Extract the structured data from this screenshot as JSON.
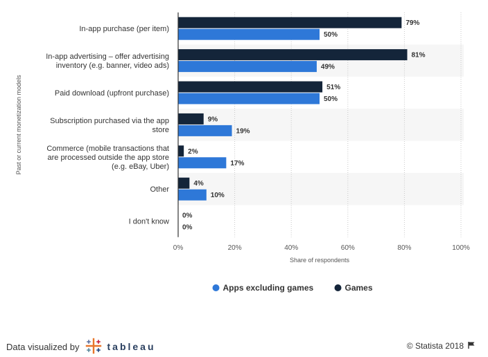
{
  "chart_data": {
    "type": "bar",
    "orientation": "horizontal",
    "categories": [
      [
        "In-app purchase (per item)"
      ],
      [
        "In-app advertising – offer advertising",
        "inventory (e.g. banner, video ads)"
      ],
      [
        "Paid download (upfront purchase)"
      ],
      [
        "Subscription purchased via the app",
        "store"
      ],
      [
        "Commerce (mobile transactions that",
        "are processed outside the app store",
        "(e.g. eBay, Uber)"
      ],
      [
        "Other"
      ],
      [
        "I don't know"
      ]
    ],
    "series": [
      {
        "name": "Games",
        "color": "#14253a",
        "values": [
          79,
          81,
          51,
          9,
          2,
          4,
          0
        ]
      },
      {
        "name": "Apps excluding games",
        "color": "#2e78d8",
        "values": [
          50,
          49,
          50,
          19,
          17,
          10,
          0
        ]
      }
    ],
    "value_suffix": "%",
    "xlabel": "Share of respondents",
    "ylabel": "Past or current monetization models",
    "xlim": [
      0,
      100
    ],
    "xticks": [
      0,
      20,
      40,
      60,
      80,
      100
    ],
    "xtick_labels": [
      "0%",
      "20%",
      "40%",
      "60%",
      "80%",
      "100%"
    ],
    "grid": true,
    "legend": {
      "position": "bottom",
      "items": [
        {
          "name": "Apps excluding games",
          "color": "#2e78d8"
        },
        {
          "name": "Games",
          "color": "#14253a"
        }
      ]
    }
  },
  "footer": {
    "left_text": "Data visualized by",
    "brand_text": "tableau",
    "copyright": "© Statista 2018",
    "flag_icon": "flag-icon"
  }
}
